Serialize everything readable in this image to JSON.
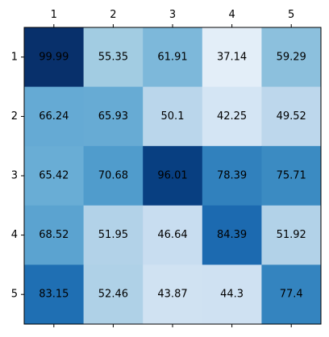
{
  "chart_data": {
    "type": "heatmap",
    "title": "",
    "xlabel": "",
    "ylabel": "",
    "x_ticks": [
      "1",
      "2",
      "3",
      "4",
      "5"
    ],
    "y_ticks": [
      "1",
      "2",
      "3",
      "4",
      "5"
    ],
    "x_axis_position": "top",
    "colormap": "Blues",
    "value_range": [
      30,
      100
    ],
    "grid": false,
    "values": [
      [
        99.99,
        55.35,
        61.91,
        37.14,
        59.29
      ],
      [
        66.24,
        65.93,
        50.1,
        42.25,
        49.52
      ],
      [
        65.42,
        70.68,
        96.01,
        78.39,
        75.71
      ],
      [
        68.52,
        51.95,
        46.64,
        84.39,
        51.92
      ],
      [
        83.15,
        52.46,
        43.87,
        44.3,
        77.4
      ]
    ]
  }
}
